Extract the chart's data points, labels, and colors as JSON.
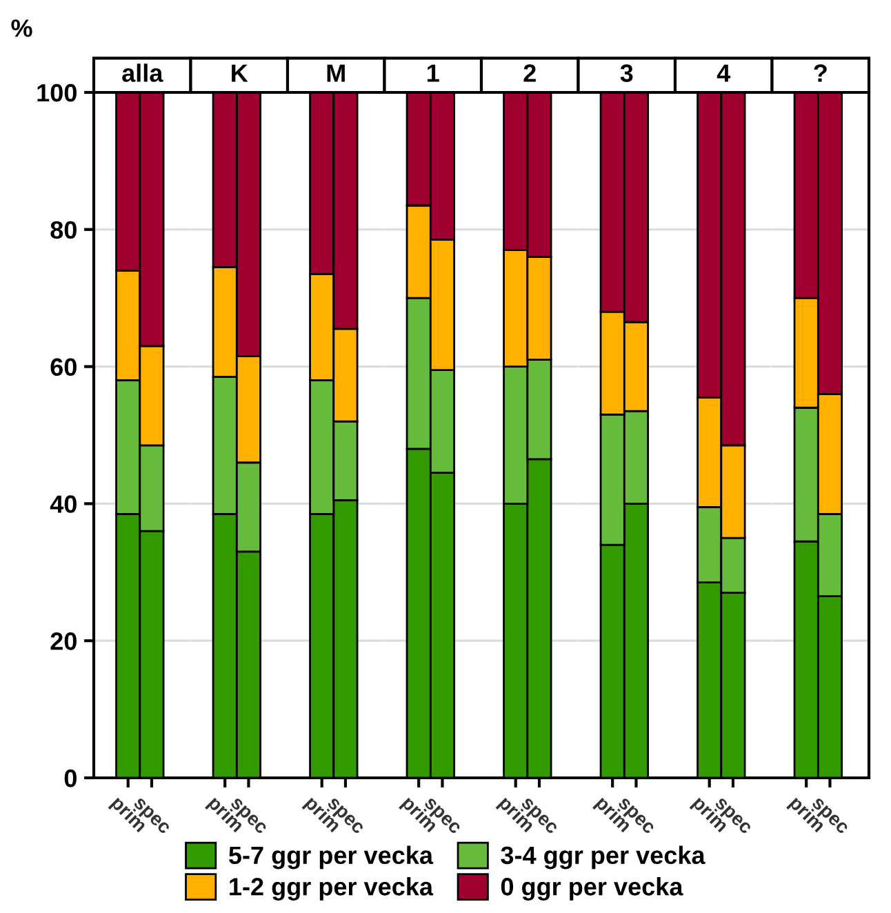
{
  "chart_data": [
    {
      "type": "bar",
      "stacked": true,
      "title": "alla",
      "ylabel": "%",
      "categories": [
        "prim",
        "spec"
      ],
      "ylim": [
        0,
        100
      ],
      "yticks": [
        0,
        20,
        40,
        60,
        80,
        100
      ],
      "grid": "y",
      "legend": "bottom",
      "series": [
        {
          "name": "5-7 ggr per vecka",
          "color": "#339900",
          "values": [
            38.5,
            36
          ]
        },
        {
          "name": "3-4 ggr per vecka",
          "color": "#66bb3c",
          "values": [
            19.5,
            12.5
          ]
        },
        {
          "name": "1-2 ggr per vecka",
          "color": "#ffb000",
          "values": [
            16,
            14.5
          ]
        },
        {
          "name": "0 ggr per vecka",
          "color": "#a00030",
          "values": [
            26,
            37
          ]
        }
      ]
    },
    {
      "type": "bar",
      "stacked": true,
      "title": "K",
      "categories": [
        "prim",
        "spec"
      ],
      "ylim": [
        0,
        100
      ],
      "grid": "y",
      "tick_labels": "x",
      "series": [
        {
          "color": "#339900",
          "values": [
            38.5,
            33
          ]
        },
        {
          "color": "#66bb3c",
          "values": [
            20,
            13
          ]
        },
        {
          "color": "#ffb000",
          "values": [
            16,
            15.5
          ]
        },
        {
          "color": "#a00030",
          "values": [
            25.5,
            38.5
          ]
        }
      ]
    },
    {
      "type": "bar",
      "stacked": true,
      "title": "M",
      "categories": [
        "prim",
        "spec"
      ],
      "ylim": [
        0,
        100
      ],
      "grid": "y",
      "tick_labels": "x",
      "series": [
        {
          "color": "#339900",
          "values": [
            38.5,
            40.5
          ]
        },
        {
          "color": "#66bb3c",
          "values": [
            19.5,
            11.5
          ]
        },
        {
          "color": "#ffb000",
          "values": [
            15.5,
            13.5
          ]
        },
        {
          "color": "#a00030",
          "values": [
            26.5,
            34.5
          ]
        }
      ]
    },
    {
      "type": "bar",
      "stacked": true,
      "title": "1",
      "categories": [
        "prim",
        "spec"
      ],
      "ylim": [
        0,
        100
      ],
      "grid": "y",
      "tick_labels": "x",
      "series": [
        {
          "color": "#339900",
          "values": [
            48,
            44.5
          ]
        },
        {
          "color": "#66bb3c",
          "values": [
            22,
            15
          ]
        },
        {
          "color": "#ffb000",
          "values": [
            13.5,
            19
          ]
        },
        {
          "color": "#a00030",
          "values": [
            16.5,
            21.5
          ]
        }
      ]
    },
    {
      "type": "bar",
      "stacked": true,
      "title": "2",
      "categories": [
        "prim",
        "spec"
      ],
      "ylim": [
        0,
        100
      ],
      "grid": "y",
      "tick_labels": "x",
      "series": [
        {
          "color": "#339900",
          "values": [
            40,
            46.5
          ]
        },
        {
          "color": "#66bb3c",
          "values": [
            20,
            14.5
          ]
        },
        {
          "color": "#ffb000",
          "values": [
            17,
            15
          ]
        },
        {
          "color": "#a00030",
          "values": [
            23,
            24
          ]
        }
      ]
    },
    {
      "type": "bar",
      "stacked": true,
      "title": "3",
      "categories": [
        "prim",
        "spec"
      ],
      "ylim": [
        0,
        100
      ],
      "grid": "y",
      "tick_labels": "x",
      "series": [
        {
          "color": "#339900",
          "values": [
            34,
            40
          ]
        },
        {
          "color": "#66bb3c",
          "values": [
            19,
            13.5
          ]
        },
        {
          "color": "#ffb000",
          "values": [
            15,
            13
          ]
        },
        {
          "color": "#a00030",
          "values": [
            32,
            33.5
          ]
        }
      ]
    },
    {
      "type": "bar",
      "stacked": true,
      "title": "4",
      "categories": [
        "prim",
        "spec"
      ],
      "ylim": [
        0,
        100
      ],
      "grid": "y",
      "tick_labels": "x",
      "series": [
        {
          "color": "#339900",
          "values": [
            28.5,
            27
          ]
        },
        {
          "color": "#66bb3c",
          "values": [
            11,
            8
          ]
        },
        {
          "color": "#ffb000",
          "values": [
            16,
            13.5
          ]
        },
        {
          "color": "#a00030",
          "values": [
            44.5,
            51.5
          ]
        }
      ]
    },
    {
      "type": "bar",
      "stacked": true,
      "title": "?",
      "categories": [
        "prim",
        "spec"
      ],
      "ylim": [
        0,
        100
      ],
      "grid": "y",
      "tick_labels": "x",
      "series": [
        {
          "color": "#339900",
          "values": [
            34.5,
            26.5
          ]
        },
        {
          "color": "#66bb3c",
          "values": [
            19.5,
            12
          ]
        },
        {
          "color": "#ffb000",
          "values": [
            16,
            17.5
          ]
        },
        {
          "color": "#a00030",
          "values": [
            30,
            44
          ]
        }
      ]
    }
  ]
}
